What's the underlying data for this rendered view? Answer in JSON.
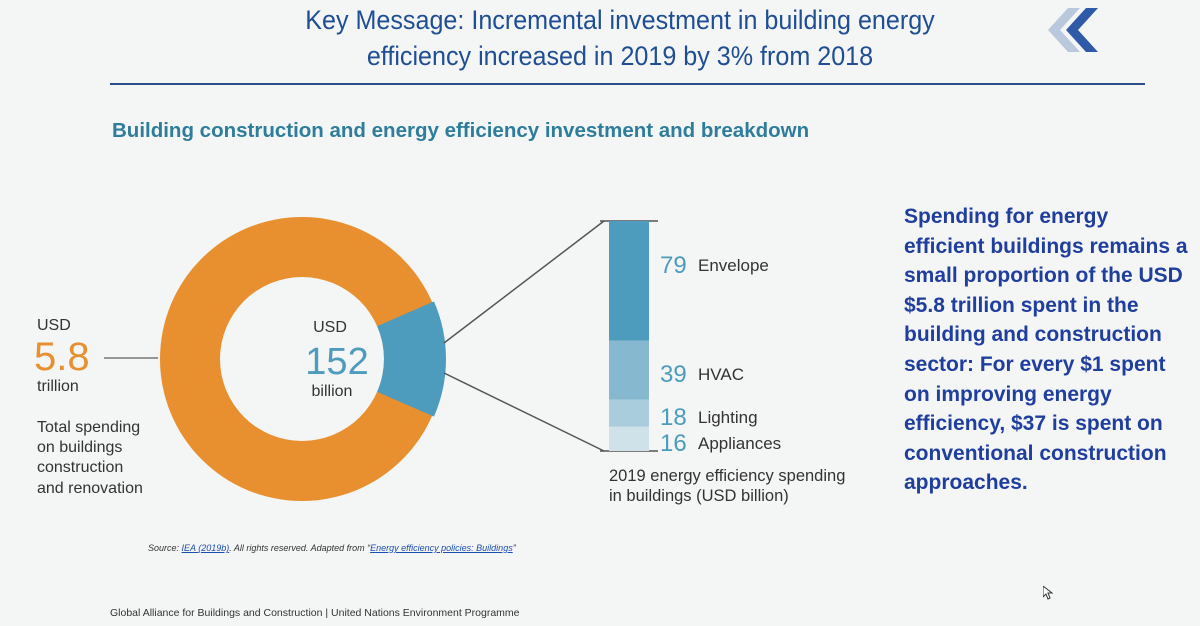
{
  "header": {
    "title_line1": "Key Message: Incremental investment in building energy",
    "title_line2": "efficiency increased in 2019 by 3% from 2018",
    "logo_icon": "chevron-double-left-icon"
  },
  "subtitle": "Building construction and energy efficiency investment and breakdown",
  "chart_data": {
    "type": "pie",
    "title": "Building construction and energy efficiency investment and breakdown",
    "total": {
      "currency": "USD",
      "value": "5.8",
      "unit": "trillion",
      "description_lines": [
        "Total spending",
        "on buildings",
        "construction",
        "and renovation"
      ]
    },
    "highlight": {
      "currency": "USD",
      "value": "152",
      "unit": "billion"
    },
    "breakdown": {
      "type": "bar",
      "categories": [
        "Envelope",
        "HVAC",
        "Lighting",
        "Appliances"
      ],
      "values": [
        79,
        39,
        18,
        16
      ],
      "colors": [
        "#4d9bbd",
        "#86b9cf",
        "#a9cddd",
        "#cfe2ea"
      ],
      "caption_lines": [
        "2019 energy efficiency spending",
        "in buildings (USD billion)"
      ]
    },
    "ring_color": "#e8902f",
    "value_color": "#e8902f",
    "highlight_color": "#4d9bbd"
  },
  "side_text": "Spending for energy efficient buildings remains a small proportion of the USD $5.8 trillion spent in the building and construction sector: For every $1 spent on improving energy efficiency, $37 is spent on conventional construction approaches.",
  "source": {
    "prefix": "Source: ",
    "link1": "IEA (2019b)",
    "middle": ". All rights reserved. Adapted from “",
    "link2": "Energy efficiency policies: Buildings",
    "suffix": "”"
  },
  "footer": "Global Alliance for Buildings and Construction  |  United Nations Environment Programme"
}
